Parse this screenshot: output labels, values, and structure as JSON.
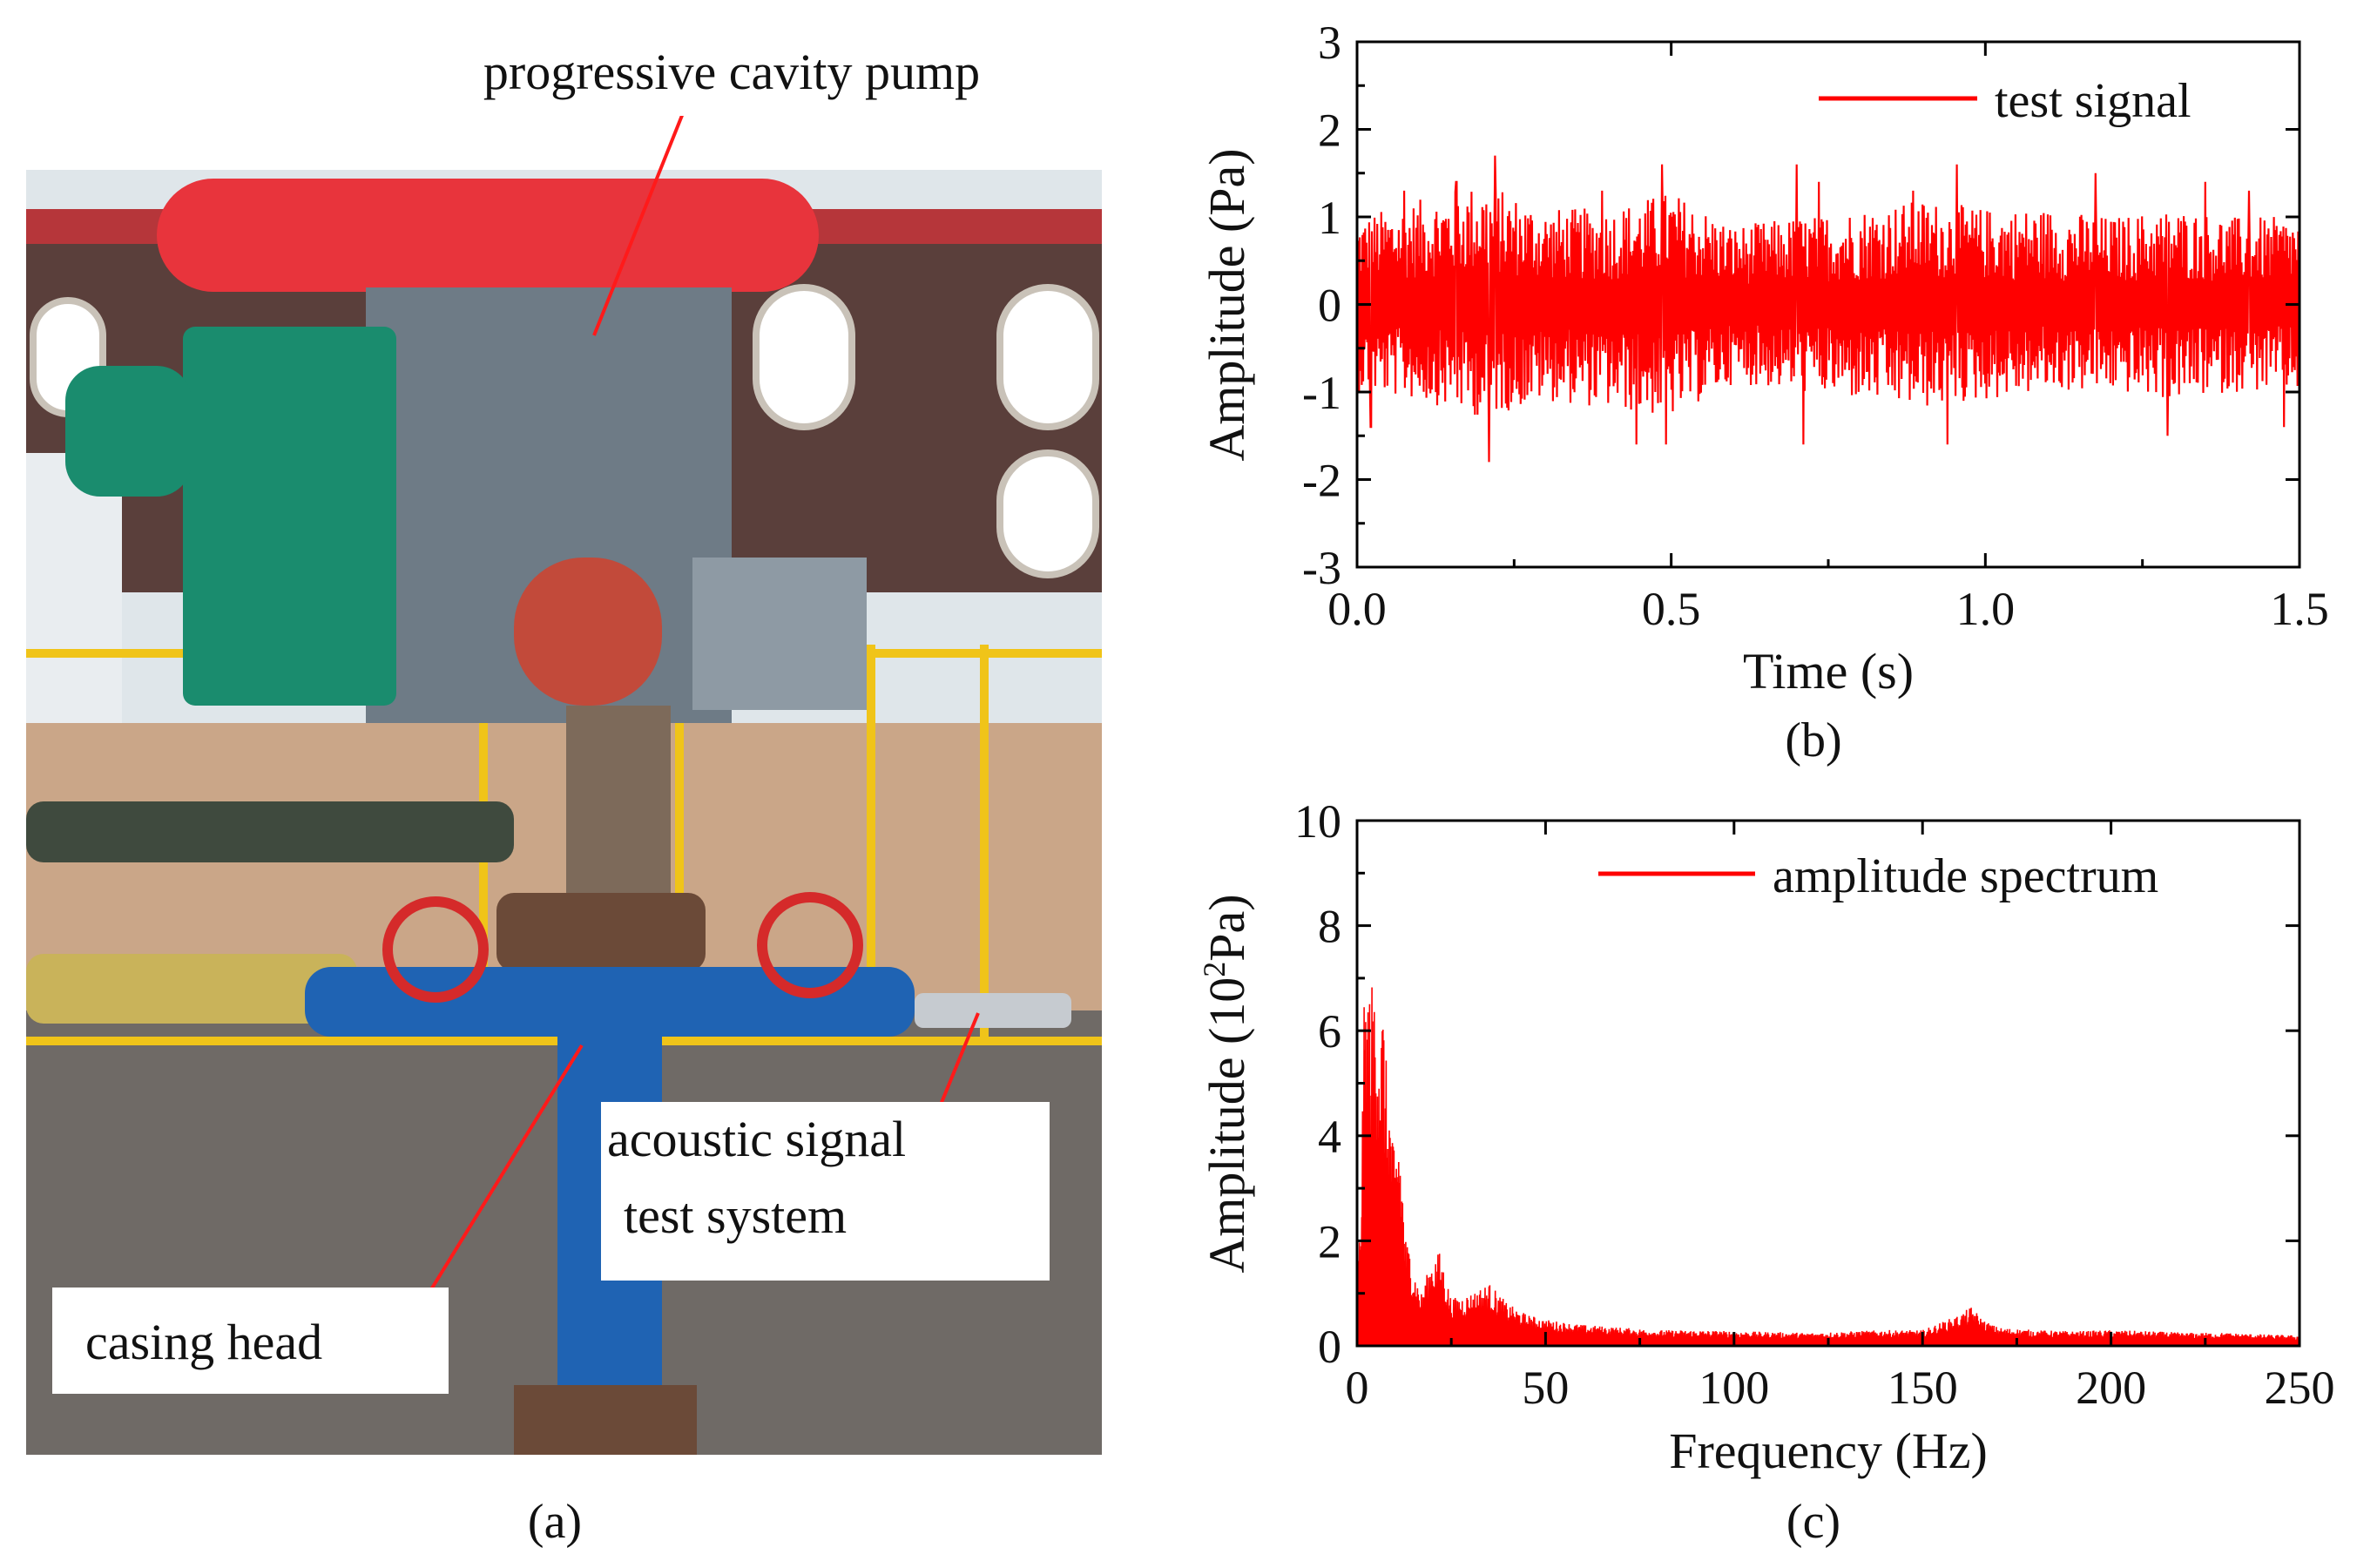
{
  "photo": {
    "panel_label": "(a)",
    "callouts": {
      "pump": "progressive cavity pump",
      "acoustic_line1": "acoustic signal",
      "acoustic_line2": "test system",
      "casing": "casing head"
    },
    "colors": {
      "sky": "#dfe6ea",
      "building": "#5a3f3b",
      "gravel": "#6f6a66",
      "fence": "#f0c419",
      "pump_red": "#e8343c",
      "motor_green": "#1a8c6e",
      "steel_gray": "#6e7b86",
      "pipe_blue": "#1f63b3",
      "callout_line": "#ff1a1a"
    }
  },
  "chart_data": [
    {
      "id": "b",
      "type": "line",
      "panel_label": "(b)",
      "title": "",
      "xlabel": "Time (s)",
      "ylabel": "Amplitude (Pa)",
      "xlim": [
        0.0,
        1.5
      ],
      "ylim": [
        -3,
        3
      ],
      "xticks": [
        0.0,
        0.5,
        1.0,
        1.5
      ],
      "xtick_labels": [
        "0.0",
        "0.5",
        "1.0",
        "1.5"
      ],
      "yticks": [
        -3,
        -2,
        -1,
        0,
        1,
        2,
        3
      ],
      "ytick_labels": [
        "-3",
        "-2",
        "-1",
        "0",
        "1",
        "2",
        "3"
      ],
      "legend": [
        "test signal"
      ],
      "legend_position": "top-right",
      "series": [
        {
          "name": "test signal",
          "color": "#ff0000",
          "description": "noise-like acoustic signal, envelope approx. ±1.1 Pa with peaks to about ±1.7 Pa",
          "envelope_t": [
            0.0,
            0.1,
            0.2,
            0.3,
            0.4,
            0.5,
            0.6,
            0.7,
            0.8,
            0.9,
            1.0,
            1.1,
            1.2,
            1.3,
            1.4,
            1.5
          ],
          "envelope_upper": [
            1.0,
            1.2,
            1.4,
            1.1,
            1.1,
            1.3,
            0.9,
            1.0,
            1.1,
            1.2,
            1.1,
            1.1,
            1.0,
            1.1,
            1.0,
            1.0
          ],
          "envelope_lower": [
            -1.0,
            -1.1,
            -1.3,
            -1.1,
            -1.2,
            -1.3,
            -0.9,
            -1.0,
            -1.1,
            -1.2,
            -1.1,
            -1.0,
            -1.0,
            -1.1,
            -1.0,
            -1.0
          ],
          "peak_t": [
            0.022,
            0.075,
            0.158,
            0.21,
            0.22,
            0.39,
            0.445,
            0.485,
            0.492,
            0.7,
            0.71,
            0.735,
            0.885,
            0.94,
            0.955,
            1.175,
            1.29,
            1.35,
            1.42,
            1.475
          ],
          "peak_values": [
            -1.4,
            1.3,
            1.4,
            -1.8,
            1.7,
            1.3,
            -1.6,
            1.6,
            -1.6,
            1.6,
            -1.6,
            1.4,
            1.3,
            -1.6,
            1.6,
            1.5,
            -1.5,
            1.4,
            1.3,
            -1.4
          ]
        }
      ]
    },
    {
      "id": "c",
      "type": "area",
      "panel_label": "(c)",
      "title": "",
      "xlabel": "Frequency (Hz)",
      "ylabel": "Amplitude (10²Pa)",
      "ylabel_base": "Amplitude (10",
      "ylabel_exp": "2",
      "ylabel_tail": "Pa)",
      "xlim": [
        0,
        250
      ],
      "ylim": [
        0,
        10
      ],
      "xticks": [
        0,
        50,
        100,
        150,
        200,
        250
      ],
      "xtick_labels": [
        "0",
        "50",
        "100",
        "150",
        "200",
        "250"
      ],
      "yticks": [
        0,
        2,
        4,
        6,
        8,
        10
      ],
      "ytick_labels": [
        "0",
        "2",
        "4",
        "6",
        "8",
        "10"
      ],
      "legend": [
        "amplitude spectrum"
      ],
      "legend_position": "top-right",
      "series": [
        {
          "name": "amplitude spectrum",
          "color": "#ff0000",
          "freq": [
            0,
            1,
            2,
            3,
            4,
            5,
            6,
            7,
            8,
            9,
            10,
            11,
            12,
            13,
            14,
            15,
            17,
            20,
            22,
            25,
            30,
            35,
            40,
            45,
            50,
            60,
            70,
            80,
            90,
            100,
            120,
            140,
            150,
            155,
            160,
            163,
            166,
            170,
            180,
            190,
            200,
            210,
            220,
            230,
            240,
            250
          ],
          "amplitude": [
            1.2,
            2.7,
            7.0,
            6.9,
            7.0,
            7.2,
            6.4,
            6.6,
            5.0,
            4.6,
            3.5,
            4.4,
            3.3,
            2.0,
            1.9,
            1.5,
            1.0,
            1.7,
            1.8,
            0.9,
            1.0,
            1.2,
            0.8,
            0.6,
            0.5,
            0.4,
            0.35,
            0.3,
            0.3,
            0.28,
            0.25,
            0.3,
            0.3,
            0.45,
            0.6,
            0.75,
            0.5,
            0.35,
            0.3,
            0.28,
            0.3,
            0.28,
            0.25,
            0.25,
            0.22,
            0.2
          ]
        }
      ]
    }
  ]
}
